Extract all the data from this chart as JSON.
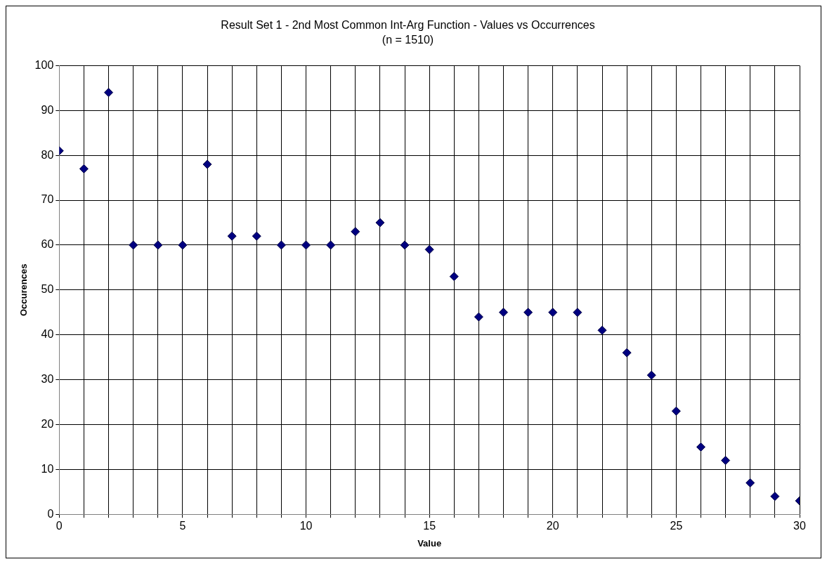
{
  "chart_data": {
    "type": "scatter",
    "title": "Result Set 1 - 2nd Most Common Int-Arg Function - Values vs Occurrences",
    "subtitle": "(n = 1510)",
    "xlabel": "Value",
    "ylabel": "Occurences",
    "x": [
      0,
      1,
      2,
      3,
      4,
      5,
      6,
      7,
      8,
      9,
      10,
      11,
      12,
      13,
      14,
      15,
      16,
      17,
      18,
      19,
      20,
      21,
      22,
      23,
      24,
      25,
      26,
      27,
      28,
      29,
      30
    ],
    "series": [
      {
        "color": "#000080",
        "values": [
          81,
          77,
          94,
          60,
          60,
          60,
          78,
          62,
          62,
          60,
          60,
          60,
          63,
          65,
          60,
          59,
          53,
          44,
          45,
          45,
          45,
          45,
          41,
          36,
          31,
          23,
          15,
          12,
          7,
          4,
          3
        ]
      }
    ],
    "xlim": [
      0,
      30
    ],
    "xticks": [
      0,
      {
        "value": 1,
        "label": null
      },
      {
        "value": 2,
        "label": null
      },
      {
        "value": 3,
        "label": null
      },
      {
        "value": 4,
        "label": null
      },
      5,
      {
        "value": 6,
        "label": null
      },
      {
        "value": 7,
        "label": null
      },
      {
        "value": 8,
        "label": null
      },
      {
        "value": 9,
        "label": null
      },
      10,
      {
        "value": 11,
        "label": null
      },
      {
        "value": 12,
        "label": null
      },
      {
        "value": 13,
        "label": null
      },
      {
        "value": 14,
        "label": null
      },
      15,
      {
        "value": 16,
        "label": null
      },
      {
        "value": 17,
        "label": null
      },
      {
        "value": 18,
        "label": null
      },
      {
        "value": 19,
        "label": null
      },
      20,
      {
        "value": 21,
        "label": null
      },
      {
        "value": 22,
        "label": null
      },
      {
        "value": 23,
        "label": null
      },
      {
        "value": 24,
        "label": null
      },
      25,
      {
        "value": 26,
        "label": null
      },
      {
        "value": 27,
        "label": null
      },
      {
        "value": 28,
        "label": null
      },
      {
        "value": 29,
        "label": null
      },
      30
    ],
    "ylim": [
      0,
      100
    ],
    "yticks": [
      0,
      10,
      20,
      30,
      40,
      50,
      60,
      70,
      80,
      90,
      100
    ],
    "grid": true,
    "legend": false,
    "marker": "diamond"
  }
}
